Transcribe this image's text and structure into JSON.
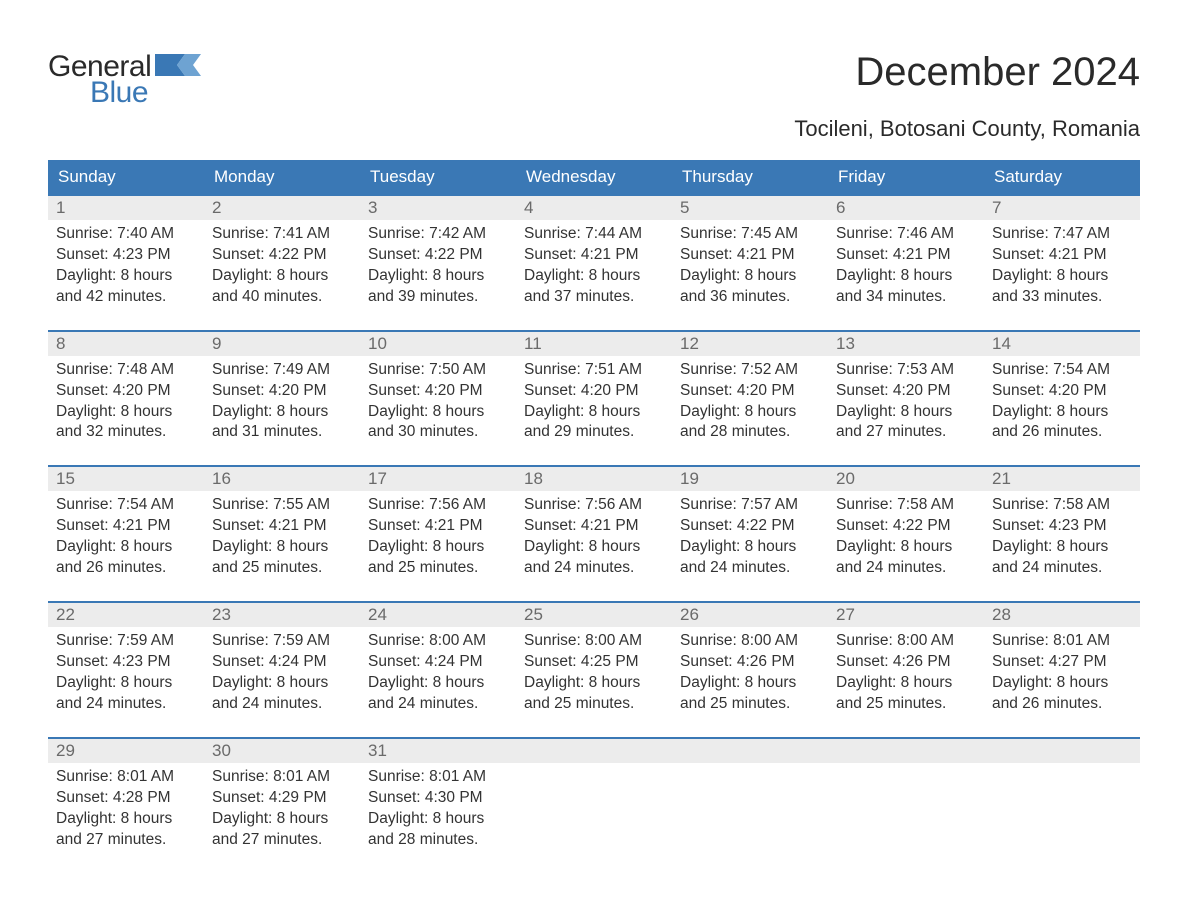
{
  "brand": {
    "word1": "General",
    "word2": "Blue",
    "flag_color": "#3a78b5",
    "text_color_dark": "#2a2a2a"
  },
  "title": "December 2024",
  "subtitle": "Tocileni, Botosani County, Romania",
  "colors": {
    "header_bg": "#3a78b5",
    "header_text": "#ffffff",
    "daynum_bg": "#ececec",
    "daynum_text": "#6a6a6a",
    "body_text": "#333333",
    "page_bg": "#ffffff",
    "week_border": "#3a78b5"
  },
  "fontsize": {
    "title": 40,
    "subtitle": 22,
    "header": 17,
    "daynum": 17,
    "body": 15.5,
    "logo": 30
  },
  "columns": [
    "Sunday",
    "Monday",
    "Tuesday",
    "Wednesday",
    "Thursday",
    "Friday",
    "Saturday"
  ],
  "weeks": [
    [
      {
        "n": "1",
        "sunrise": "Sunrise: 7:40 AM",
        "sunset": "Sunset: 4:23 PM",
        "d1": "Daylight: 8 hours",
        "d2": "and 42 minutes."
      },
      {
        "n": "2",
        "sunrise": "Sunrise: 7:41 AM",
        "sunset": "Sunset: 4:22 PM",
        "d1": "Daylight: 8 hours",
        "d2": "and 40 minutes."
      },
      {
        "n": "3",
        "sunrise": "Sunrise: 7:42 AM",
        "sunset": "Sunset: 4:22 PM",
        "d1": "Daylight: 8 hours",
        "d2": "and 39 minutes."
      },
      {
        "n": "4",
        "sunrise": "Sunrise: 7:44 AM",
        "sunset": "Sunset: 4:21 PM",
        "d1": "Daylight: 8 hours",
        "d2": "and 37 minutes."
      },
      {
        "n": "5",
        "sunrise": "Sunrise: 7:45 AM",
        "sunset": "Sunset: 4:21 PM",
        "d1": "Daylight: 8 hours",
        "d2": "and 36 minutes."
      },
      {
        "n": "6",
        "sunrise": "Sunrise: 7:46 AM",
        "sunset": "Sunset: 4:21 PM",
        "d1": "Daylight: 8 hours",
        "d2": "and 34 minutes."
      },
      {
        "n": "7",
        "sunrise": "Sunrise: 7:47 AM",
        "sunset": "Sunset: 4:21 PM",
        "d1": "Daylight: 8 hours",
        "d2": "and 33 minutes."
      }
    ],
    [
      {
        "n": "8",
        "sunrise": "Sunrise: 7:48 AM",
        "sunset": "Sunset: 4:20 PM",
        "d1": "Daylight: 8 hours",
        "d2": "and 32 minutes."
      },
      {
        "n": "9",
        "sunrise": "Sunrise: 7:49 AM",
        "sunset": "Sunset: 4:20 PM",
        "d1": "Daylight: 8 hours",
        "d2": "and 31 minutes."
      },
      {
        "n": "10",
        "sunrise": "Sunrise: 7:50 AM",
        "sunset": "Sunset: 4:20 PM",
        "d1": "Daylight: 8 hours",
        "d2": "and 30 minutes."
      },
      {
        "n": "11",
        "sunrise": "Sunrise: 7:51 AM",
        "sunset": "Sunset: 4:20 PM",
        "d1": "Daylight: 8 hours",
        "d2": "and 29 minutes."
      },
      {
        "n": "12",
        "sunrise": "Sunrise: 7:52 AM",
        "sunset": "Sunset: 4:20 PM",
        "d1": "Daylight: 8 hours",
        "d2": "and 28 minutes."
      },
      {
        "n": "13",
        "sunrise": "Sunrise: 7:53 AM",
        "sunset": "Sunset: 4:20 PM",
        "d1": "Daylight: 8 hours",
        "d2": "and 27 minutes."
      },
      {
        "n": "14",
        "sunrise": "Sunrise: 7:54 AM",
        "sunset": "Sunset: 4:20 PM",
        "d1": "Daylight: 8 hours",
        "d2": "and 26 minutes."
      }
    ],
    [
      {
        "n": "15",
        "sunrise": "Sunrise: 7:54 AM",
        "sunset": "Sunset: 4:21 PM",
        "d1": "Daylight: 8 hours",
        "d2": "and 26 minutes."
      },
      {
        "n": "16",
        "sunrise": "Sunrise: 7:55 AM",
        "sunset": "Sunset: 4:21 PM",
        "d1": "Daylight: 8 hours",
        "d2": "and 25 minutes."
      },
      {
        "n": "17",
        "sunrise": "Sunrise: 7:56 AM",
        "sunset": "Sunset: 4:21 PM",
        "d1": "Daylight: 8 hours",
        "d2": "and 25 minutes."
      },
      {
        "n": "18",
        "sunrise": "Sunrise: 7:56 AM",
        "sunset": "Sunset: 4:21 PM",
        "d1": "Daylight: 8 hours",
        "d2": "and 24 minutes."
      },
      {
        "n": "19",
        "sunrise": "Sunrise: 7:57 AM",
        "sunset": "Sunset: 4:22 PM",
        "d1": "Daylight: 8 hours",
        "d2": "and 24 minutes."
      },
      {
        "n": "20",
        "sunrise": "Sunrise: 7:58 AM",
        "sunset": "Sunset: 4:22 PM",
        "d1": "Daylight: 8 hours",
        "d2": "and 24 minutes."
      },
      {
        "n": "21",
        "sunrise": "Sunrise: 7:58 AM",
        "sunset": "Sunset: 4:23 PM",
        "d1": "Daylight: 8 hours",
        "d2": "and 24 minutes."
      }
    ],
    [
      {
        "n": "22",
        "sunrise": "Sunrise: 7:59 AM",
        "sunset": "Sunset: 4:23 PM",
        "d1": "Daylight: 8 hours",
        "d2": "and 24 minutes."
      },
      {
        "n": "23",
        "sunrise": "Sunrise: 7:59 AM",
        "sunset": "Sunset: 4:24 PM",
        "d1": "Daylight: 8 hours",
        "d2": "and 24 minutes."
      },
      {
        "n": "24",
        "sunrise": "Sunrise: 8:00 AM",
        "sunset": "Sunset: 4:24 PM",
        "d1": "Daylight: 8 hours",
        "d2": "and 24 minutes."
      },
      {
        "n": "25",
        "sunrise": "Sunrise: 8:00 AM",
        "sunset": "Sunset: 4:25 PM",
        "d1": "Daylight: 8 hours",
        "d2": "and 25 minutes."
      },
      {
        "n": "26",
        "sunrise": "Sunrise: 8:00 AM",
        "sunset": "Sunset: 4:26 PM",
        "d1": "Daylight: 8 hours",
        "d2": "and 25 minutes."
      },
      {
        "n": "27",
        "sunrise": "Sunrise: 8:00 AM",
        "sunset": "Sunset: 4:26 PM",
        "d1": "Daylight: 8 hours",
        "d2": "and 25 minutes."
      },
      {
        "n": "28",
        "sunrise": "Sunrise: 8:01 AM",
        "sunset": "Sunset: 4:27 PM",
        "d1": "Daylight: 8 hours",
        "d2": "and 26 minutes."
      }
    ],
    [
      {
        "n": "29",
        "sunrise": "Sunrise: 8:01 AM",
        "sunset": "Sunset: 4:28 PM",
        "d1": "Daylight: 8 hours",
        "d2": "and 27 minutes."
      },
      {
        "n": "30",
        "sunrise": "Sunrise: 8:01 AM",
        "sunset": "Sunset: 4:29 PM",
        "d1": "Daylight: 8 hours",
        "d2": "and 27 minutes."
      },
      {
        "n": "31",
        "sunrise": "Sunrise: 8:01 AM",
        "sunset": "Sunset: 4:30 PM",
        "d1": "Daylight: 8 hours",
        "d2": "and 28 minutes."
      },
      null,
      null,
      null,
      null
    ]
  ]
}
